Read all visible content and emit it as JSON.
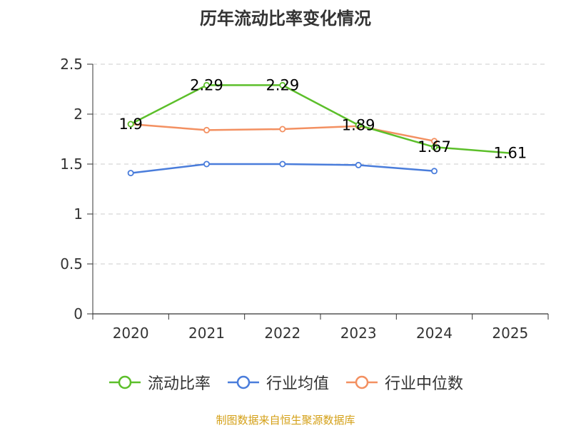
{
  "chart_data": {
    "type": "line",
    "title": "历年流动比率变化情况",
    "categories": [
      "2020",
      "2021",
      "2022",
      "2023",
      "2024",
      "2025"
    ],
    "yticks": [
      "0",
      "0.5",
      "1",
      "1.5",
      "2",
      "2.5"
    ],
    "ylim": [
      0,
      2.5
    ],
    "grid": true,
    "legend_position": "bottom",
    "series": [
      {
        "name": "流动比率",
        "color": "#5cbf2a",
        "values": [
          1.9,
          2.29,
          2.29,
          1.89,
          1.67,
          1.61
        ],
        "labels": [
          "1.9",
          "2.29",
          "2.29",
          "1.89",
          "1.67",
          "1.61"
        ],
        "show_markers": [
          true,
          true,
          true,
          true,
          true,
          false
        ]
      },
      {
        "name": "行业均值",
        "color": "#4a7ddb",
        "values": [
          1.41,
          1.5,
          1.5,
          1.49,
          1.43,
          null
        ]
      },
      {
        "name": "行业中位数",
        "color": "#f39061",
        "values": [
          1.9,
          1.84,
          1.85,
          1.88,
          1.73,
          null
        ]
      }
    ]
  },
  "footer": {
    "source": "制图数据来自恒生聚源数据库"
  }
}
